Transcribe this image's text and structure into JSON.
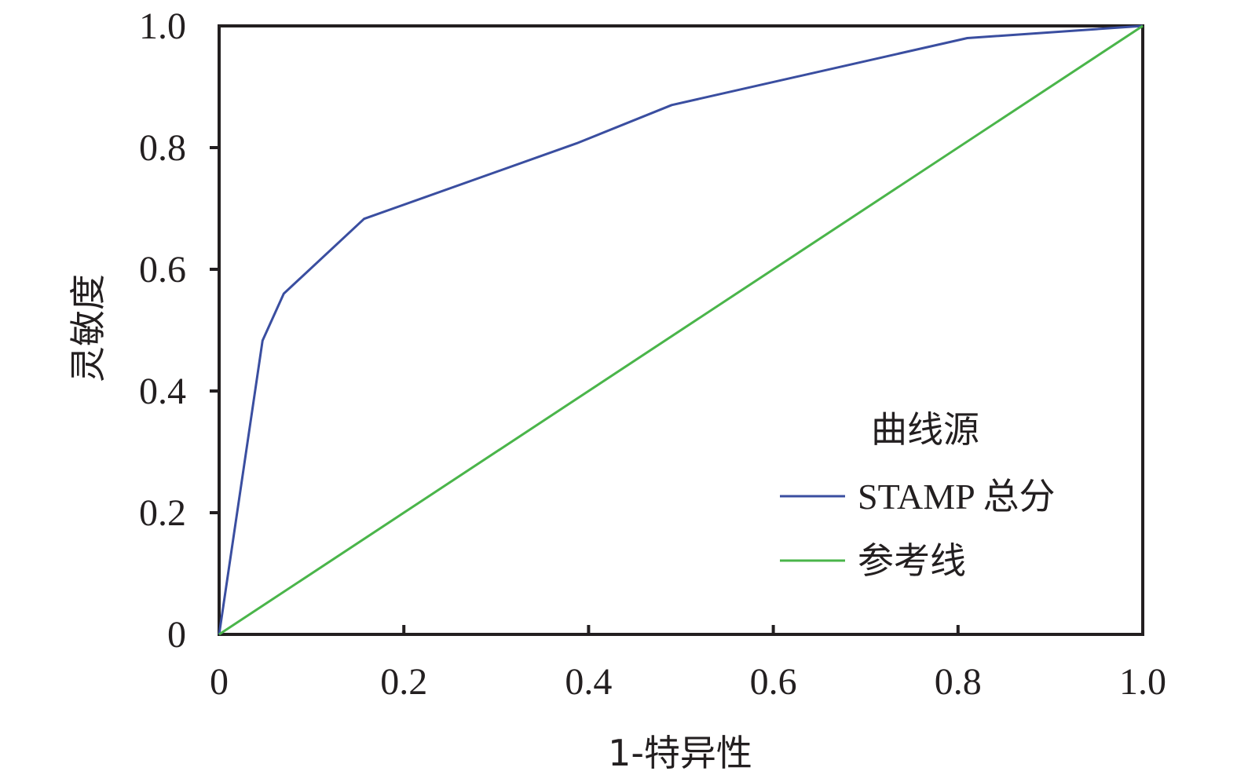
{
  "chart_data": {
    "type": "line",
    "xlabel": "1-特异性",
    "ylabel": "灵敏度",
    "xlim": [
      0,
      1
    ],
    "ylim": [
      0,
      1
    ],
    "x_ticks": [
      "0",
      "0.2",
      "0.4",
      "0.6",
      "0.8",
      "1.0"
    ],
    "y_ticks": [
      "0",
      "0.2",
      "0.4",
      "0.6",
      "0.8",
      "1.0"
    ],
    "grid": false,
    "legend": {
      "title": "曲线源",
      "position": "bottom-right"
    },
    "series": [
      {
        "name": "STAMP 总分",
        "color": "#3a4ea0",
        "x": [
          0,
          0.047,
          0.07,
          0.157,
          0.387,
          0.49,
          0.81,
          1.0
        ],
        "y": [
          0,
          0.483,
          0.56,
          0.683,
          0.807,
          0.87,
          0.98,
          1.0
        ]
      },
      {
        "name": "参考线",
        "color": "#4ab54a",
        "x": [
          0,
          1.0
        ],
        "y": [
          0,
          1.0
        ]
      }
    ]
  }
}
